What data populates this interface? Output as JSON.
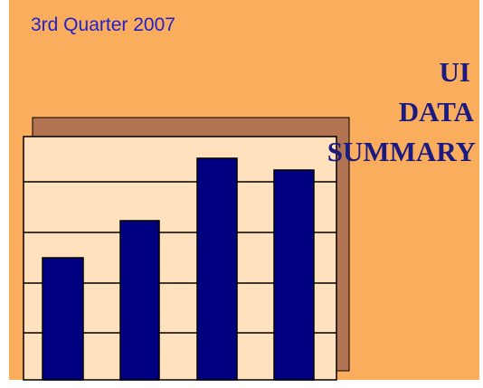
{
  "header": {
    "subtitle": "3rd Quarter 2007",
    "title_lines": [
      "UI",
      "DATA",
      "SUMMARY"
    ]
  }
}
